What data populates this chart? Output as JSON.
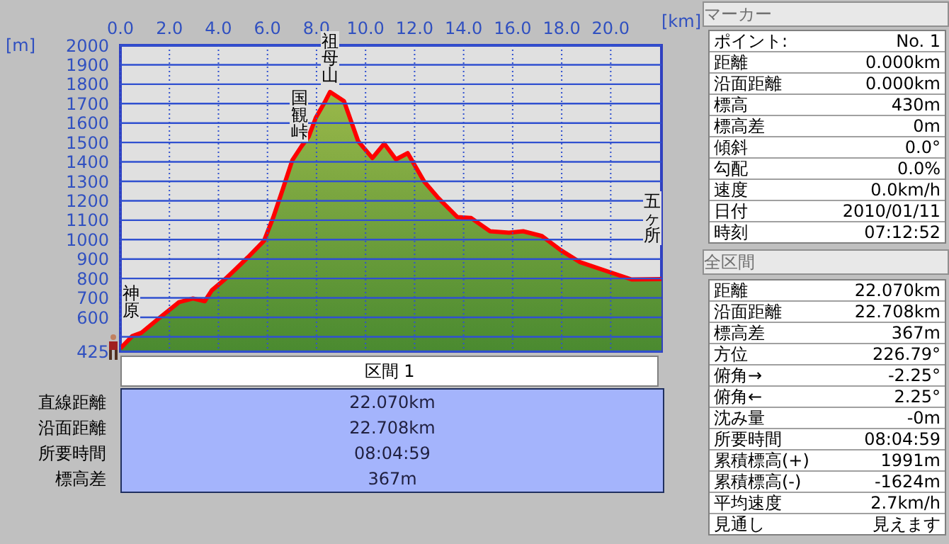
{
  "chart_data": {
    "type": "area",
    "xlabel": "[km]",
    "ylabel": "[m]",
    "xlim": [
      0,
      22.07
    ],
    "ylim": [
      425,
      2000
    ],
    "xticks": [
      {
        "value": 0,
        "label": "0.0"
      },
      {
        "value": 2,
        "label": "2.0"
      },
      {
        "value": 4,
        "label": "4.0"
      },
      {
        "value": 6,
        "label": "6.0"
      },
      {
        "value": 8,
        "label": "8.0"
      },
      {
        "value": 10,
        "label": "10.0"
      },
      {
        "value": 12,
        "label": "12.0"
      },
      {
        "value": 14,
        "label": "14.0"
      },
      {
        "value": 16,
        "label": "16.0"
      },
      {
        "value": 18,
        "label": "18.0"
      },
      {
        "value": 20,
        "label": "20.0"
      }
    ],
    "yticks": [
      425,
      {
        "value": 500,
        "label": null
      },
      600,
      700,
      800,
      900,
      1000,
      1100,
      1200,
      1300,
      1400,
      1500,
      1600,
      1700,
      1800,
      1900,
      2000
    ],
    "grid": true,
    "series": [
      {
        "color": "#ff0000",
        "x": [
          0,
          0.48,
          0.85,
          1.62,
          2.39,
          2.96,
          3.44,
          3.73,
          4.3,
          4.7,
          5.2,
          5.86,
          6.24,
          6.63,
          7.01,
          7.39,
          7.68,
          7.97,
          8.36,
          8.55,
          9.12,
          9.7,
          10.28,
          10.76,
          11.24,
          11.72,
          12.39,
          12.97,
          13.74,
          14.31,
          15.08,
          15.85,
          16.43,
          17.19,
          17.96,
          18.73,
          19.88,
          20.85,
          22.07
        ],
        "values": [
          440,
          503,
          520,
          600,
          678,
          697,
          683,
          739,
          800,
          848,
          909,
          994,
          1116,
          1262,
          1408,
          1481,
          1530,
          1627,
          1713,
          1760,
          1713,
          1506,
          1420,
          1494,
          1413,
          1445,
          1299,
          1214,
          1116,
          1111,
          1043,
          1036,
          1043,
          1019,
          946,
          885,
          836,
          795,
          797
        ]
      }
    ],
    "annotations": [
      {
        "text": "神原",
        "x": 0,
        "y": 440
      },
      {
        "text": "国観峠",
        "x": 7.3,
        "y": 1470
      },
      {
        "text": "祖母山",
        "x": 8.55,
        "y": 1760
      },
      {
        "text": "五ヶ所",
        "x": 22.07,
        "y": 797
      },
      "区間 1",
      "直線距離",
      "22.070km",
      "沿面距離",
      "22.708km",
      "所要時間",
      "08:04:59",
      "標高差",
      "367m",
      "マーカー",
      "ポイント:",
      "No. 1",
      "距離",
      "0.000km",
      "沿面距離",
      "0.000km",
      "標高",
      "430m",
      "標高差",
      "0m",
      "傾斜",
      "0.0°",
      "勾配",
      "0.0%",
      "速度",
      "0.0km/h",
      "日付",
      "2010/01/11",
      "時刻",
      "07:12:52",
      "全区間",
      "距離",
      "22.070km",
      "沿面距離",
      "22.708km",
      "標高差",
      "367m",
      "方位",
      "226.79°",
      "俯角→",
      "-2.25°",
      "俯角←",
      "2.25°",
      "沈み量",
      "-0m",
      "所要時間",
      "08:04:59",
      "累積標高(+)",
      "1991m",
      "累積標高(-)",
      "-1624m",
      "平均速度",
      "2.7km/h",
      "見通し",
      "見えます"
    ]
  }
}
